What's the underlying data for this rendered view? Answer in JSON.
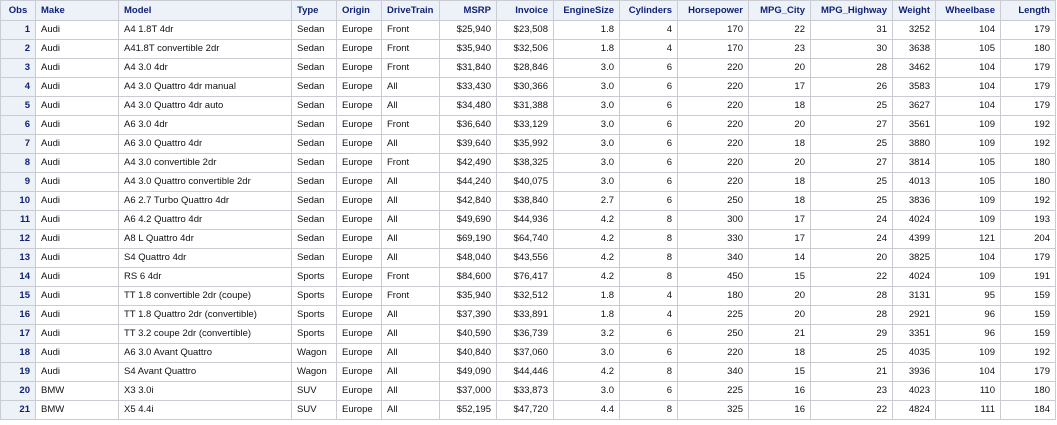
{
  "table": {
    "columns": [
      {
        "key": "obs",
        "label": "Obs",
        "align": "obs"
      },
      {
        "key": "make",
        "label": "Make",
        "align": "txt"
      },
      {
        "key": "model",
        "label": "Model",
        "align": "txt"
      },
      {
        "key": "type",
        "label": "Type",
        "align": "txt"
      },
      {
        "key": "origin",
        "label": "Origin",
        "align": "txt"
      },
      {
        "key": "drivetrain",
        "label": "DriveTrain",
        "align": "txt"
      },
      {
        "key": "msrp",
        "label": "MSRP",
        "align": "num"
      },
      {
        "key": "invoice",
        "label": "Invoice",
        "align": "num"
      },
      {
        "key": "enginesize",
        "label": "EngineSize",
        "align": "num"
      },
      {
        "key": "cylinders",
        "label": "Cylinders",
        "align": "num"
      },
      {
        "key": "horsepower",
        "label": "Horsepower",
        "align": "num"
      },
      {
        "key": "mpg_city",
        "label": "MPG_City",
        "align": "num"
      },
      {
        "key": "mpg_highway",
        "label": "MPG_Highway",
        "align": "num"
      },
      {
        "key": "weight",
        "label": "Weight",
        "align": "num"
      },
      {
        "key": "wheelbase",
        "label": "Wheelbase",
        "align": "num"
      },
      {
        "key": "length",
        "label": "Length",
        "align": "num"
      }
    ],
    "rows": [
      [
        "1",
        "Audi",
        "A4 1.8T 4dr",
        "Sedan",
        "Europe",
        "Front",
        "$25,940",
        "$23,508",
        "1.8",
        "4",
        "170",
        "22",
        "31",
        "3252",
        "104",
        "179"
      ],
      [
        "2",
        "Audi",
        "A41.8T convertible 2dr",
        "Sedan",
        "Europe",
        "Front",
        "$35,940",
        "$32,506",
        "1.8",
        "4",
        "170",
        "23",
        "30",
        "3638",
        "105",
        "180"
      ],
      [
        "3",
        "Audi",
        "A4 3.0 4dr",
        "Sedan",
        "Europe",
        "Front",
        "$31,840",
        "$28,846",
        "3.0",
        "6",
        "220",
        "20",
        "28",
        "3462",
        "104",
        "179"
      ],
      [
        "4",
        "Audi",
        "A4 3.0 Quattro 4dr manual",
        "Sedan",
        "Europe",
        "All",
        "$33,430",
        "$30,366",
        "3.0",
        "6",
        "220",
        "17",
        "26",
        "3583",
        "104",
        "179"
      ],
      [
        "5",
        "Audi",
        "A4 3.0 Quattro 4dr auto",
        "Sedan",
        "Europe",
        "All",
        "$34,480",
        "$31,388",
        "3.0",
        "6",
        "220",
        "18",
        "25",
        "3627",
        "104",
        "179"
      ],
      [
        "6",
        "Audi",
        "A6 3.0 4dr",
        "Sedan",
        "Europe",
        "Front",
        "$36,640",
        "$33,129",
        "3.0",
        "6",
        "220",
        "20",
        "27",
        "3561",
        "109",
        "192"
      ],
      [
        "7",
        "Audi",
        "A6 3.0 Quattro 4dr",
        "Sedan",
        "Europe",
        "All",
        "$39,640",
        "$35,992",
        "3.0",
        "6",
        "220",
        "18",
        "25",
        "3880",
        "109",
        "192"
      ],
      [
        "8",
        "Audi",
        "A4 3.0 convertible 2dr",
        "Sedan",
        "Europe",
        "Front",
        "$42,490",
        "$38,325",
        "3.0",
        "6",
        "220",
        "20",
        "27",
        "3814",
        "105",
        "180"
      ],
      [
        "9",
        "Audi",
        "A4 3.0 Quattro convertible 2dr",
        "Sedan",
        "Europe",
        "All",
        "$44,240",
        "$40,075",
        "3.0",
        "6",
        "220",
        "18",
        "25",
        "4013",
        "105",
        "180"
      ],
      [
        "10",
        "Audi",
        "A6 2.7 Turbo Quattro 4dr",
        "Sedan",
        "Europe",
        "All",
        "$42,840",
        "$38,840",
        "2.7",
        "6",
        "250",
        "18",
        "25",
        "3836",
        "109",
        "192"
      ],
      [
        "11",
        "Audi",
        "A6 4.2 Quattro 4dr",
        "Sedan",
        "Europe",
        "All",
        "$49,690",
        "$44,936",
        "4.2",
        "8",
        "300",
        "17",
        "24",
        "4024",
        "109",
        "193"
      ],
      [
        "12",
        "Audi",
        "A8 L Quattro 4dr",
        "Sedan",
        "Europe",
        "All",
        "$69,190",
        "$64,740",
        "4.2",
        "8",
        "330",
        "17",
        "24",
        "4399",
        "121",
        "204"
      ],
      [
        "13",
        "Audi",
        "S4 Quattro 4dr",
        "Sedan",
        "Europe",
        "All",
        "$48,040",
        "$43,556",
        "4.2",
        "8",
        "340",
        "14",
        "20",
        "3825",
        "104",
        "179"
      ],
      [
        "14",
        "Audi",
        "RS 6 4dr",
        "Sports",
        "Europe",
        "Front",
        "$84,600",
        "$76,417",
        "4.2",
        "8",
        "450",
        "15",
        "22",
        "4024",
        "109",
        "191"
      ],
      [
        "15",
        "Audi",
        "TT 1.8 convertible 2dr (coupe)",
        "Sports",
        "Europe",
        "Front",
        "$35,940",
        "$32,512",
        "1.8",
        "4",
        "180",
        "20",
        "28",
        "3131",
        "95",
        "159"
      ],
      [
        "16",
        "Audi",
        "TT 1.8 Quattro 2dr (convertible)",
        "Sports",
        "Europe",
        "All",
        "$37,390",
        "$33,891",
        "1.8",
        "4",
        "225",
        "20",
        "28",
        "2921",
        "96",
        "159"
      ],
      [
        "17",
        "Audi",
        "TT 3.2 coupe 2dr (convertible)",
        "Sports",
        "Europe",
        "All",
        "$40,590",
        "$36,739",
        "3.2",
        "6",
        "250",
        "21",
        "29",
        "3351",
        "96",
        "159"
      ],
      [
        "18",
        "Audi",
        "A6 3.0 Avant Quattro",
        "Wagon",
        "Europe",
        "All",
        "$40,840",
        "$37,060",
        "3.0",
        "6",
        "220",
        "18",
        "25",
        "4035",
        "109",
        "192"
      ],
      [
        "19",
        "Audi",
        "S4 Avant Quattro",
        "Wagon",
        "Europe",
        "All",
        "$49,090",
        "$44,446",
        "4.2",
        "8",
        "340",
        "15",
        "21",
        "3936",
        "104",
        "179"
      ],
      [
        "20",
        "BMW",
        "X3 3.0i",
        "SUV",
        "Europe",
        "All",
        "$37,000",
        "$33,873",
        "3.0",
        "6",
        "225",
        "16",
        "23",
        "4023",
        "110",
        "180"
      ],
      [
        "21",
        "BMW",
        "X5 4.4i",
        "SUV",
        "Europe",
        "All",
        "$52,195",
        "$47,720",
        "4.4",
        "8",
        "325",
        "16",
        "22",
        "4824",
        "111",
        "184"
      ]
    ]
  }
}
